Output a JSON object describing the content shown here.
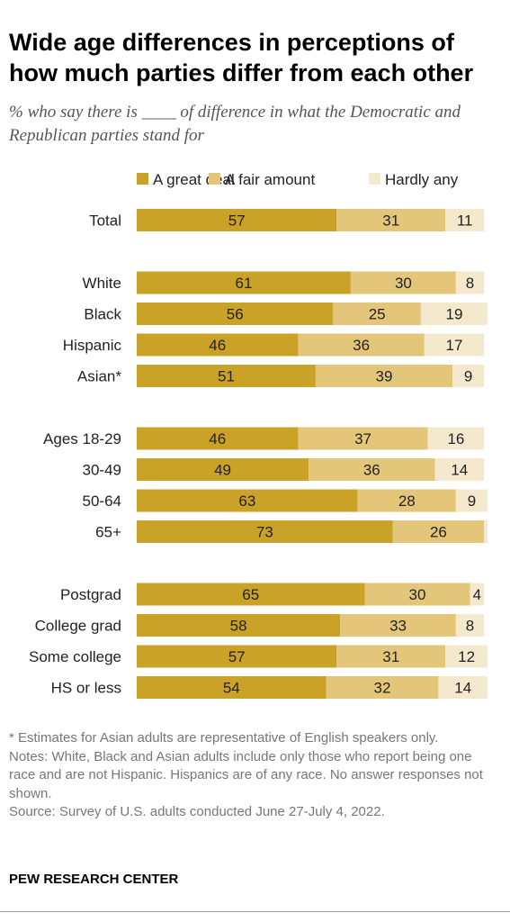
{
  "title": "Wide age differences in perceptions of how much parties differ from each other",
  "subtitle": "% who say there is ____ of difference in what the Democratic and Republican parties stand for",
  "legend": [
    "A great deal",
    "A fair amount",
    "Hardly any"
  ],
  "colors": [
    "#c9a227",
    "#e3c67a",
    "#f4e9cc"
  ],
  "notes": [
    "* Estimates for Asian adults are representative of English speakers only.",
    "Notes: White, Black and Asian adults include only those who report being one race and are not Hispanic. Hispanics are of any race. No answer responses not shown.",
    "Source: Survey of U.S. adults conducted June 27-July 4, 2022."
  ],
  "source_org": "PEW RESEARCH CENTER",
  "chart_data": {
    "type": "bar",
    "orientation": "horizontal",
    "stacked": true,
    "categories": [
      "Total",
      "White",
      "Black",
      "Hispanic",
      "Asian*",
      "Ages 18-29",
      "30-49",
      "50-64",
      "65+",
      "Postgrad",
      "College grad",
      "Some college",
      "HS or less"
    ],
    "groups": [
      [
        "Total"
      ],
      [
        "White",
        "Black",
        "Hispanic",
        "Asian*"
      ],
      [
        "Ages 18-29",
        "30-49",
        "50-64",
        "65+"
      ],
      [
        "Postgrad",
        "College grad",
        "Some college",
        "HS or less"
      ]
    ],
    "series": [
      {
        "name": "A great deal",
        "values": [
          57,
          61,
          56,
          46,
          51,
          46,
          49,
          63,
          73,
          65,
          58,
          57,
          54
        ]
      },
      {
        "name": "A fair amount",
        "values": [
          31,
          30,
          25,
          36,
          39,
          37,
          36,
          28,
          26,
          30,
          33,
          31,
          32
        ]
      },
      {
        "name": "Hardly any",
        "values": [
          11,
          8,
          19,
          17,
          9,
          16,
          14,
          9,
          1,
          4,
          8,
          12,
          14
        ]
      }
    ],
    "labels": [
      [
        "57",
        "61",
        "56",
        "46",
        "51",
        "46",
        "49",
        "63",
        "73",
        "65",
        "58",
        "57",
        "54"
      ],
      [
        "31",
        "30",
        "25",
        "36",
        "39",
        "37",
        "36",
        "28",
        "26",
        "30",
        "33",
        "31",
        "32"
      ],
      [
        "11",
        "8",
        "19",
        "17",
        "9",
        "16",
        "14",
        "9",
        "",
        "4",
        "8",
        "12",
        "14"
      ]
    ],
    "xlim": [
      0,
      100
    ],
    "legend_position": "top"
  }
}
